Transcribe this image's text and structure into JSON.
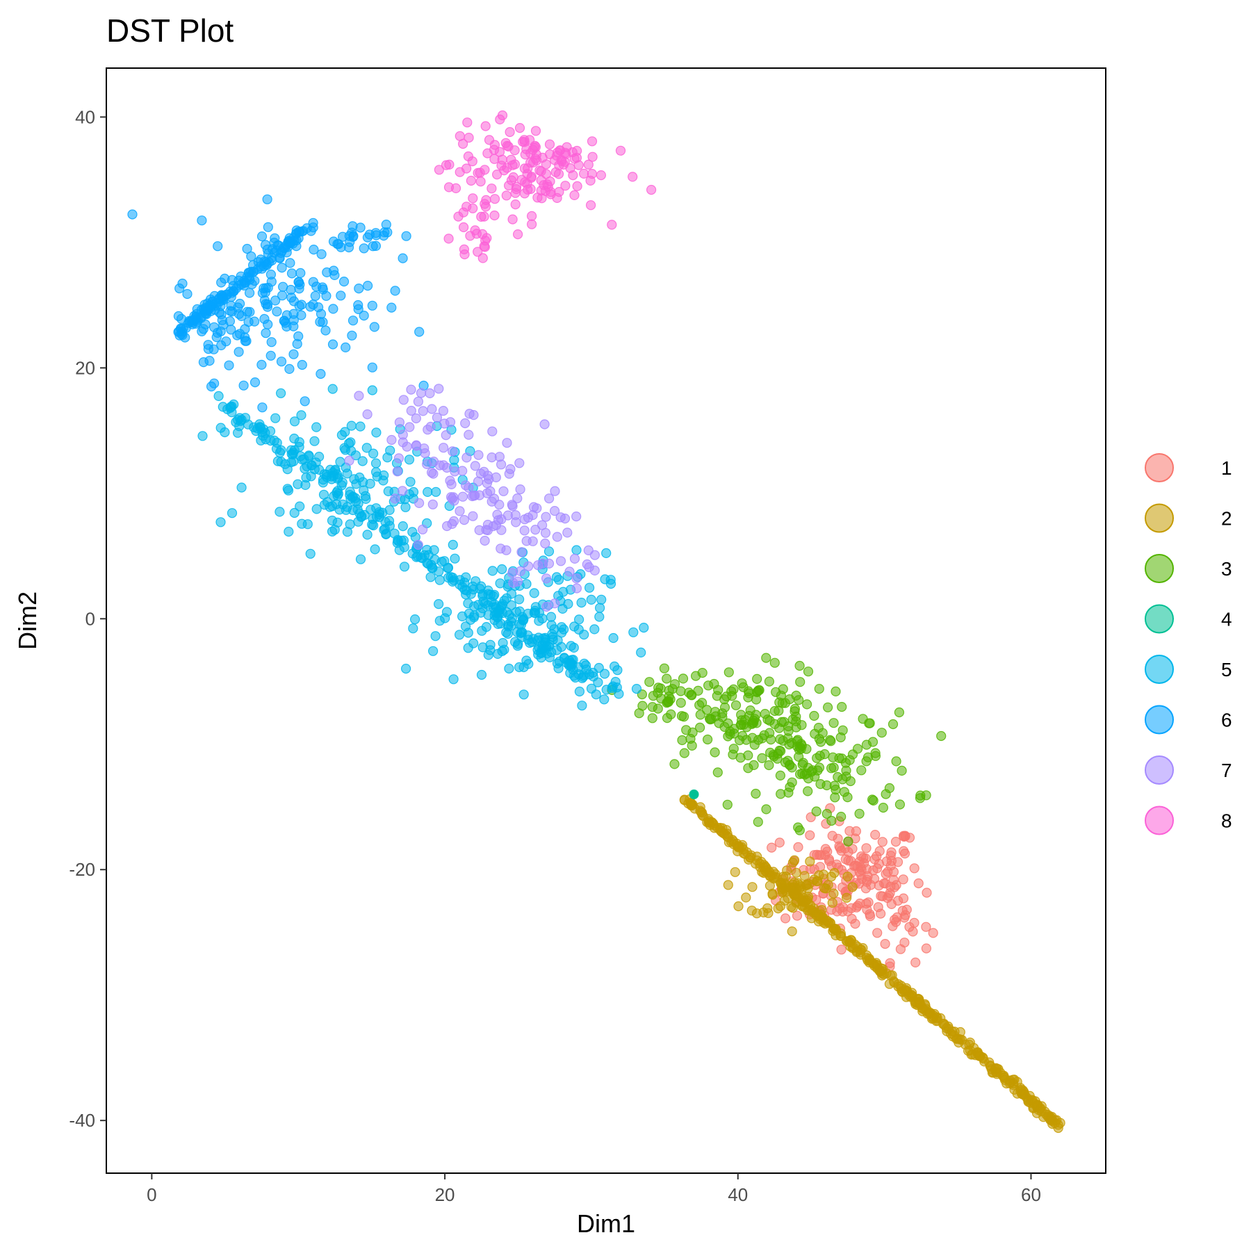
{
  "chart_data": {
    "type": "scatter",
    "title": "DST Plot",
    "xlabel": "Dim1",
    "ylabel": "Dim2",
    "xlim": [
      -3.1,
      65.1
    ],
    "ylim": [
      -44.2,
      43.9
    ],
    "x_ticks": [
      0,
      20,
      40,
      60
    ],
    "y_ticks": [
      40,
      20,
      0,
      -20,
      -40
    ],
    "x_tick_labels": [
      "0",
      "20",
      "40",
      "60"
    ],
    "y_tick_labels": [
      "40",
      "20",
      "0",
      "-20",
      "-40"
    ],
    "grid": false,
    "legend_position": "right",
    "series": [
      {
        "name": "1",
        "color": "#F8766D",
        "clusters": [
          {
            "center": [
              47.8,
              -20.6
            ],
            "spread": [
              2.4,
              2.2
            ],
            "n": 170
          },
          {
            "center": [
              51.3,
              -24.5
            ],
            "spread": [
              0.9,
              1.4
            ],
            "n": 20
          }
        ]
      },
      {
        "name": "2",
        "color": "#C49A00",
        "line": {
          "from": [
            36.5,
            -14.5
          ],
          "to": [
            62.0,
            -40.5
          ],
          "n": 360,
          "jitter": 0.35
        },
        "clusters": [
          {
            "center": [
              44.0,
              -21.5
            ],
            "spread": [
              1.6,
              1.2
            ],
            "n": 80
          }
        ]
      },
      {
        "name": "3",
        "color": "#53B400",
        "clusters": [
          {
            "center": [
              40.0,
              -7.8
            ],
            "spread": [
              3.0,
              2.0
            ],
            "n": 150
          },
          {
            "center": [
              46.0,
              -12.0
            ],
            "spread": [
              3.0,
              2.2
            ],
            "n": 110
          },
          {
            "center": [
              35.0,
              -6.0
            ],
            "spread": [
              1.2,
              0.8
            ],
            "n": 20
          }
        ]
      },
      {
        "name": "4",
        "color": "#00C094",
        "points": [
          [
            37.0,
            -14.0
          ]
        ]
      },
      {
        "name": "5",
        "color": "#00B6EB",
        "line": {
          "from": [
            5.0,
            17.0
          ],
          "to": [
            30.0,
            -5.0
          ],
          "n": 260,
          "jitter": 1.2
        },
        "clusters": [
          {
            "center": [
              14.0,
              11.0
            ],
            "spread": [
              3.5,
              2.8
            ],
            "n": 120
          },
          {
            "center": [
              25.0,
              0.0
            ],
            "spread": [
              3.0,
              2.6
            ],
            "n": 140
          },
          {
            "center": [
              31.0,
              -5.5
            ],
            "spread": [
              1.0,
              1.0
            ],
            "n": 15
          }
        ]
      },
      {
        "name": "6",
        "color": "#06A4FF",
        "line": {
          "from": [
            1.5,
            22.5
          ],
          "to": [
            11.0,
            31.5
          ],
          "n": 120,
          "jitter": 0.5
        },
        "clusters": [
          {
            "center": [
              9.5,
              25.5
            ],
            "spread": [
              3.2,
              3.2
            ],
            "n": 140
          },
          {
            "center": [
              4.0,
              23.5
            ],
            "spread": [
              1.5,
              1.3
            ],
            "n": 40
          },
          {
            "center": [
              14.0,
              30.5
            ],
            "spread": [
              1.6,
              0.6
            ],
            "n": 25
          }
        ]
      },
      {
        "name": "7",
        "color": "#A58AFF",
        "clusters": [
          {
            "center": [
              18.5,
              15.0
            ],
            "spread": [
              1.8,
              1.8
            ],
            "n": 45
          },
          {
            "center": [
              23.0,
              9.5
            ],
            "spread": [
              2.4,
              2.2
            ],
            "n": 80
          },
          {
            "center": [
              26.5,
              5.0
            ],
            "spread": [
              1.8,
              1.8
            ],
            "n": 35
          }
        ]
      },
      {
        "name": "8",
        "color": "#FB61D7",
        "clusters": [
          {
            "center": [
              25.5,
              36.0
            ],
            "spread": [
              2.6,
              1.8
            ],
            "n": 140
          },
          {
            "center": [
              22.0,
              31.0
            ],
            "spread": [
              1.0,
              2.0
            ],
            "n": 25
          }
        ]
      }
    ]
  }
}
